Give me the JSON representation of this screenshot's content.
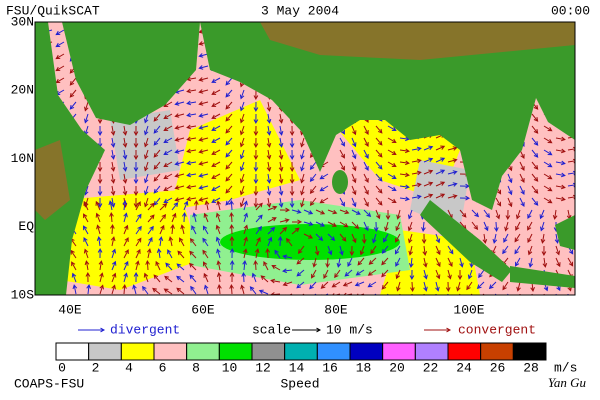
{
  "header": {
    "product": "FSU/QuikSCAT",
    "date": "3 May 2004",
    "time": "00:00"
  },
  "map": {
    "lat_labels": [
      "30N",
      "20N",
      "10N",
      "EQ",
      "10S"
    ],
    "lon_labels": [
      "40E",
      "60E",
      "80E",
      "100E"
    ]
  },
  "legend": {
    "divergent": {
      "label": "divergent",
      "color": "#2020d0"
    },
    "scale": "scale",
    "scale_value": "10 m/s",
    "convergent": {
      "label": "convergent",
      "color": "#a01010"
    }
  },
  "colorbar": {
    "colors": [
      "#ffffff",
      "#c8c8c8",
      "#ffff00",
      "#ffc0c0",
      "#90f090",
      "#00e000",
      "#909090",
      "#00b0b0",
      "#3090ff",
      "#0000c0",
      "#ff60ff",
      "#b080ff",
      "#ff0000",
      "#c84000",
      "#000000"
    ],
    "ticks": [
      0,
      2,
      4,
      6,
      8,
      10,
      12,
      14,
      16,
      18,
      20,
      22,
      24,
      26,
      28
    ],
    "unit": "m/s",
    "title": "Speed"
  },
  "footer": {
    "left": "COAPS-FSU",
    "right": "Yan Gu"
  }
}
